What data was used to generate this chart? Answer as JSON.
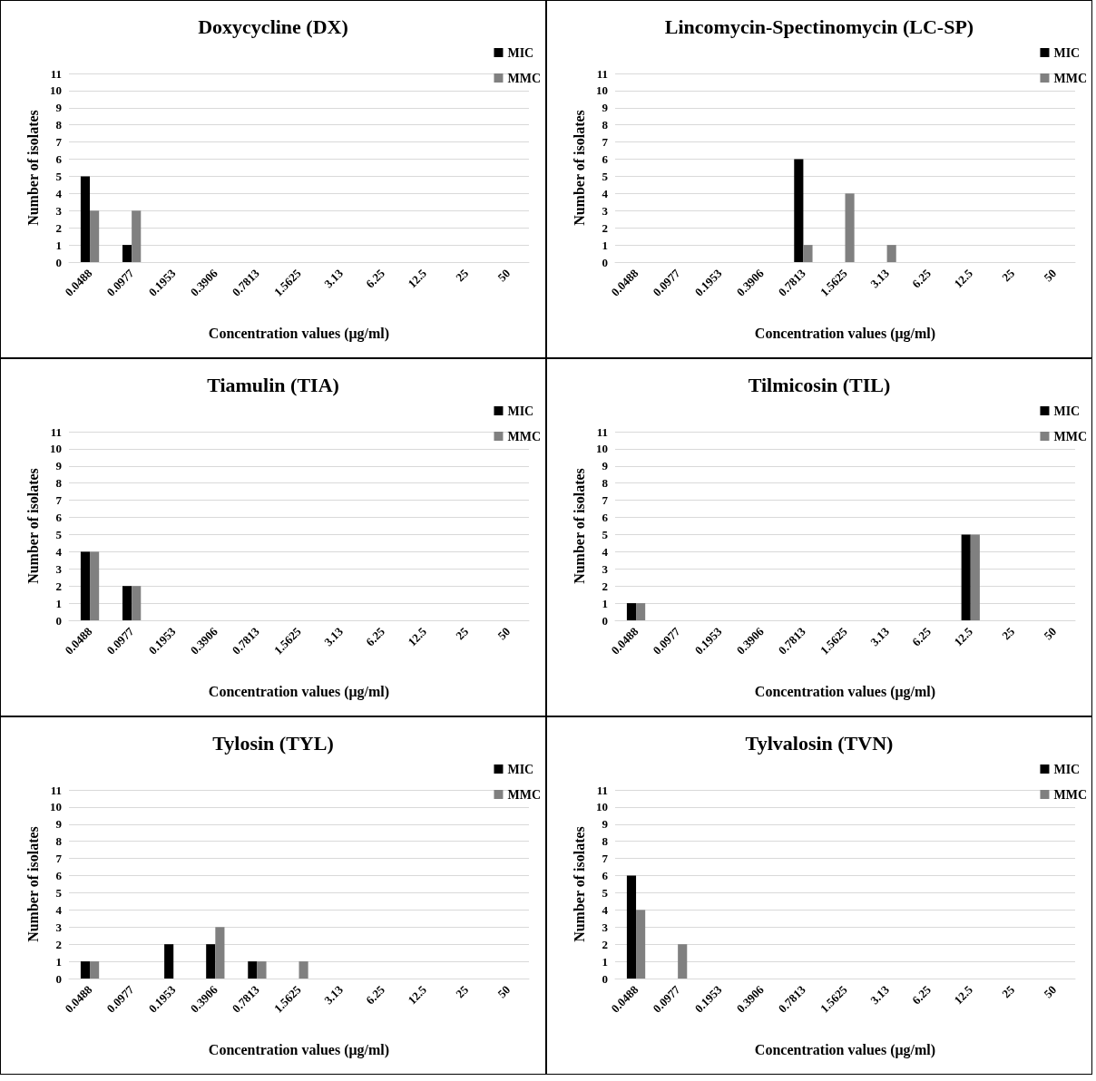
{
  "chart_data": [
    {
      "type": "bar",
      "title": "Doxycycline (DX)",
      "xlabel": "Concentration values (μg/ml)",
      "ylabel": "Number of isolates",
      "categories": [
        "0.0488",
        "0.0977",
        "0.1953",
        "0.3906",
        "0.7813",
        "1.5625",
        "3.13",
        "6.25",
        "12.5",
        "25",
        "50"
      ],
      "series": [
        {
          "name": "MIC",
          "color": "#000000",
          "values": [
            5,
            1,
            0,
            0,
            0,
            0,
            0,
            0,
            0,
            0,
            0
          ]
        },
        {
          "name": "MMC",
          "color": "#808080",
          "values": [
            3,
            3,
            0,
            0,
            0,
            0,
            0,
            0,
            0,
            0,
            0
          ]
        }
      ],
      "ylim": [
        0,
        11
      ],
      "yticks": [
        0,
        1,
        2,
        3,
        4,
        5,
        6,
        7,
        8,
        9,
        10,
        11
      ],
      "grid": "y",
      "legend": "top right"
    },
    {
      "type": "bar",
      "title": "Lincomycin-Spectinomycin (LC-SP)",
      "xlabel": "Concentration values (μg/ml)",
      "ylabel": "Number of isolates",
      "categories": [
        "0.0488",
        "0.0977",
        "0.1953",
        "0.3906",
        "0.7813",
        "1.5625",
        "3.13",
        "6.25",
        "12.5",
        "25",
        "50"
      ],
      "series": [
        {
          "name": "MIC",
          "color": "#000000",
          "values": [
            0,
            0,
            0,
            0,
            6,
            0,
            0,
            0,
            0,
            0,
            0
          ]
        },
        {
          "name": "MMC",
          "color": "#808080",
          "values": [
            0,
            0,
            0,
            0,
            1,
            4,
            1,
            0,
            0,
            0,
            0
          ]
        }
      ],
      "ylim": [
        0,
        11
      ],
      "yticks": [
        0,
        1,
        2,
        3,
        4,
        5,
        6,
        7,
        8,
        9,
        10,
        11
      ],
      "grid": "y",
      "legend": "top right"
    },
    {
      "type": "bar",
      "title": "Tiamulin (TIA)",
      "xlabel": "Concentration values (μg/ml)",
      "ylabel": "Number of isolates",
      "categories": [
        "0.0488",
        "0.0977",
        "0.1953",
        "0.3906",
        "0.7813",
        "1.5625",
        "3.13",
        "6.25",
        "12.5",
        "25",
        "50"
      ],
      "series": [
        {
          "name": "MIC",
          "color": "#000000",
          "values": [
            4,
            2,
            0,
            0,
            0,
            0,
            0,
            0,
            0,
            0,
            0
          ]
        },
        {
          "name": "MMC",
          "color": "#808080",
          "values": [
            4,
            2,
            0,
            0,
            0,
            0,
            0,
            0,
            0,
            0,
            0
          ]
        }
      ],
      "ylim": [
        0,
        11
      ],
      "yticks": [
        0,
        1,
        2,
        3,
        4,
        5,
        6,
        7,
        8,
        9,
        10,
        11
      ],
      "grid": "y",
      "legend": "top right"
    },
    {
      "type": "bar",
      "title": "Tilmicosin (TIL)",
      "xlabel": "Concentration values (μg/ml)",
      "ylabel": "Number of isolates",
      "categories": [
        "0.0488",
        "0.0977",
        "0.1953",
        "0.3906",
        "0.7813",
        "1.5625",
        "3.13",
        "6.25",
        "12.5",
        "25",
        "50"
      ],
      "series": [
        {
          "name": "MIC",
          "color": "#000000",
          "values": [
            1,
            0,
            0,
            0,
            0,
            0,
            0,
            0,
            5,
            0,
            0
          ]
        },
        {
          "name": "MMC",
          "color": "#808080",
          "values": [
            1,
            0,
            0,
            0,
            0,
            0,
            0,
            0,
            5,
            0,
            0
          ]
        }
      ],
      "ylim": [
        0,
        11
      ],
      "yticks": [
        0,
        1,
        2,
        3,
        4,
        5,
        6,
        7,
        8,
        9,
        10,
        11
      ],
      "grid": "y",
      "legend": "top right"
    },
    {
      "type": "bar",
      "title": "Tylosin (TYL)",
      "xlabel": "Concentration values (μg/ml)",
      "ylabel": "Number of isolates",
      "categories": [
        "0.0488",
        "0.0977",
        "0.1953",
        "0.3906",
        "0.7813",
        "1.5625",
        "3.13",
        "6.25",
        "12.5",
        "25",
        "50"
      ],
      "series": [
        {
          "name": "MIC",
          "color": "#000000",
          "values": [
            1,
            0,
            2,
            2,
            1,
            0,
            0,
            0,
            0,
            0,
            0
          ]
        },
        {
          "name": "MMC",
          "color": "#808080",
          "values": [
            1,
            0,
            0,
            3,
            1,
            1,
            0,
            0,
            0,
            0,
            0
          ]
        }
      ],
      "ylim": [
        0,
        11
      ],
      "yticks": [
        0,
        1,
        2,
        3,
        4,
        5,
        6,
        7,
        8,
        9,
        10,
        11
      ],
      "grid": "y",
      "legend": "top right"
    },
    {
      "type": "bar",
      "title": "Tylvalosin (TVN)",
      "xlabel": "Concentration values (μg/ml)",
      "ylabel": "Number of isolates",
      "categories": [
        "0.0488",
        "0.0977",
        "0.1953",
        "0.3906",
        "0.7813",
        "1.5625",
        "3.13",
        "6.25",
        "12.5",
        "25",
        "50"
      ],
      "series": [
        {
          "name": "MIC",
          "color": "#000000",
          "values": [
            6,
            0,
            0,
            0,
            0,
            0,
            0,
            0,
            0,
            0,
            0
          ]
        },
        {
          "name": "MMC",
          "color": "#808080",
          "values": [
            4,
            2,
            0,
            0,
            0,
            0,
            0,
            0,
            0,
            0,
            0
          ]
        }
      ],
      "ylim": [
        0,
        11
      ],
      "yticks": [
        0,
        1,
        2,
        3,
        4,
        5,
        6,
        7,
        8,
        9,
        10,
        11
      ],
      "grid": "y",
      "legend": "top right"
    }
  ]
}
